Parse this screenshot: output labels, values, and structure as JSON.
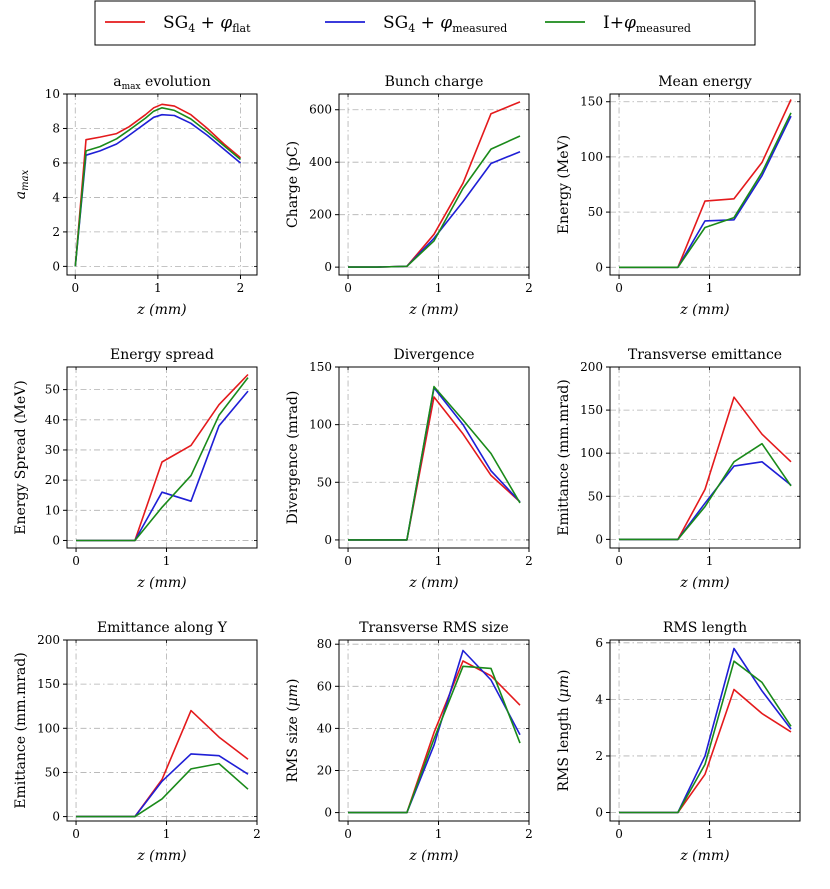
{
  "legend": [
    {
      "label": "SG",
      "sub": "4",
      "mid": " + ",
      "phi": "φ",
      "phi_sub": "flat",
      "color": "#e41a1c"
    },
    {
      "label": "SG",
      "sub": "4",
      "mid": " + ",
      "phi": "φ",
      "phi_sub": "measured",
      "color": "#1f1fd6"
    },
    {
      "label": "I+",
      "sub": "",
      "mid": "",
      "phi": "φ",
      "phi_sub": "measured",
      "color": "#1a8a1a"
    }
  ],
  "chart_data": [
    {
      "type": "line",
      "title": "a_max evolution",
      "title_main": "a",
      "title_sub": "max",
      "title_rest": " evolution",
      "xlabel": "z (mm)",
      "ylabel": "a_max",
      "ylabel_main": "a",
      "ylabel_sub": "max",
      "xlim": [
        -0.1,
        2.2
      ],
      "ylim": [
        -0.5,
        10
      ],
      "xticks": [
        0,
        1,
        2
      ],
      "yticks": [
        0,
        2,
        4,
        6,
        8,
        10
      ],
      "x": [
        0,
        0.13,
        0.3,
        0.5,
        0.65,
        0.85,
        0.95,
        1.05,
        1.2,
        1.4,
        1.6,
        1.8,
        2.0
      ],
      "series": [
        {
          "name": "SG4 + φflat",
          "values": [
            0,
            7.35,
            7.5,
            7.7,
            8.1,
            8.8,
            9.2,
            9.4,
            9.3,
            8.8,
            8.0,
            7.1,
            6.3
          ]
        },
        {
          "name": "SG4 + φmeasured",
          "values": [
            0,
            6.45,
            6.7,
            7.1,
            7.6,
            8.3,
            8.65,
            8.8,
            8.75,
            8.3,
            7.6,
            6.8,
            6.0
          ]
        },
        {
          "name": "I+φmeasured",
          "values": [
            0,
            6.7,
            6.95,
            7.4,
            7.9,
            8.6,
            9.0,
            9.2,
            9.05,
            8.55,
            7.8,
            7.0,
            6.2
          ]
        }
      ]
    },
    {
      "type": "line",
      "title": "Bunch charge",
      "xlabel": "z (mm)",
      "ylabel": "Charge (pC)",
      "xlim": [
        -0.1,
        2.0
      ],
      "ylim": [
        -30,
        660
      ],
      "xticks": [
        0,
        1,
        2
      ],
      "yticks": [
        0,
        200,
        400,
        600
      ],
      "x": [
        0,
        0.32,
        0.65,
        0.95,
        1.27,
        1.58,
        1.9
      ],
      "series": [
        {
          "name": "SG4 + φflat",
          "values": [
            0,
            0,
            3,
            125,
            320,
            585,
            630
          ]
        },
        {
          "name": "SG4 + φmeasured",
          "values": [
            0,
            0,
            3,
            110,
            250,
            395,
            440
          ]
        },
        {
          "name": "I+φmeasured",
          "values": [
            0,
            0,
            3,
            100,
            300,
            450,
            500
          ]
        }
      ]
    },
    {
      "type": "line",
      "title": "Mean energy",
      "xlabel": "z (mm)",
      "ylabel": "Energy (MeV)",
      "xlim": [
        -0.1,
        2.0
      ],
      "ylim": [
        -7,
        157
      ],
      "xticks": [
        0,
        1
      ],
      "yticks": [
        0,
        50,
        100,
        150
      ],
      "x": [
        0,
        0.32,
        0.65,
        0.95,
        1.27,
        1.58,
        1.9
      ],
      "series": [
        {
          "name": "SG4 + φflat",
          "values": [
            0,
            0,
            0,
            60,
            62,
            95,
            152
          ]
        },
        {
          "name": "SG4 + φmeasured",
          "values": [
            0,
            0,
            0,
            42,
            43,
            83,
            137
          ]
        },
        {
          "name": "I+φmeasured",
          "values": [
            0,
            0,
            0,
            36,
            45,
            86,
            140
          ]
        }
      ]
    },
    {
      "type": "line",
      "title": "Energy spread",
      "xlabel": "z (mm)",
      "ylabel": "Energy Spread (MeV)",
      "xlim": [
        -0.1,
        2.0
      ],
      "ylim": [
        -2.5,
        57.5
      ],
      "xticks": [
        0,
        1
      ],
      "yticks": [
        0,
        10,
        20,
        30,
        40,
        50
      ],
      "x": [
        0,
        0.32,
        0.65,
        0.95,
        1.27,
        1.58,
        1.9
      ],
      "series": [
        {
          "name": "SG4 + φflat",
          "values": [
            0,
            0,
            0,
            26,
            31.5,
            45,
            55
          ]
        },
        {
          "name": "SG4 + φmeasured",
          "values": [
            0,
            0,
            0,
            16,
            13,
            38,
            49.5
          ]
        },
        {
          "name": "I+φmeasured",
          "values": [
            0,
            0,
            0,
            11,
            21.5,
            41.5,
            54
          ]
        }
      ]
    },
    {
      "type": "line",
      "title": "Divergence",
      "xlabel": "z (mm)",
      "ylabel": "Divergence (mrad)",
      "xlim": [
        -0.1,
        2.0
      ],
      "ylim": [
        -7,
        150
      ],
      "xticks": [
        0,
        1,
        2
      ],
      "yticks": [
        0,
        50,
        100,
        150
      ],
      "x": [
        0,
        0.32,
        0.65,
        0.95,
        1.27,
        1.58,
        1.9
      ],
      "series": [
        {
          "name": "SG4 + φflat",
          "values": [
            0,
            0,
            0,
            124,
            92,
            56,
            33
          ]
        },
        {
          "name": "SG4 + φmeasured",
          "values": [
            0,
            0,
            0,
            132,
            100,
            60,
            33
          ]
        },
        {
          "name": "I+φmeasured",
          "values": [
            0,
            0,
            0,
            133,
            104,
            75,
            32
          ]
        }
      ]
    },
    {
      "type": "line",
      "title": "Transverse emittance",
      "xlabel": "z (mm)",
      "ylabel": "Emittance (mm.mrad)",
      "xlim": [
        -0.1,
        2.0
      ],
      "ylim": [
        -10,
        200
      ],
      "xticks": [
        0,
        1
      ],
      "yticks": [
        0,
        50,
        100,
        150,
        200
      ],
      "x": [
        0,
        0.32,
        0.65,
        0.95,
        1.27,
        1.58,
        1.9
      ],
      "series": [
        {
          "name": "SG4 + φflat",
          "values": [
            0,
            0,
            0,
            58,
            165,
            122,
            90
          ]
        },
        {
          "name": "SG4 + φmeasured",
          "values": [
            0,
            0,
            0,
            42,
            85,
            90,
            63
          ]
        },
        {
          "name": "I+φmeasured",
          "values": [
            0,
            0,
            0,
            38,
            90,
            111,
            62
          ]
        }
      ]
    },
    {
      "type": "line",
      "title": "Emittance along Y",
      "xlabel": "z (mm)",
      "ylabel": "Emittance (mm.mrad)",
      "xlim": [
        -0.1,
        2.0
      ],
      "ylim": [
        -5,
        200
      ],
      "xticks": [
        0,
        1,
        2
      ],
      "yticks": [
        0,
        50,
        100,
        150,
        200
      ],
      "x": [
        0,
        0.32,
        0.65,
        0.95,
        1.27,
        1.58,
        1.9
      ],
      "series": [
        {
          "name": "SG4 + φflat",
          "values": [
            0,
            0,
            0,
            42,
            120,
            90,
            65
          ]
        },
        {
          "name": "SG4 + φmeasured",
          "values": [
            0,
            0,
            0,
            40,
            71,
            69,
            48
          ]
        },
        {
          "name": "I+φmeasured",
          "values": [
            0,
            0,
            0,
            20,
            54,
            60,
            31
          ]
        }
      ]
    },
    {
      "type": "line",
      "title": "Transverse RMS size",
      "xlabel": "z (mm)",
      "ylabel": "RMS size (μm)",
      "ylabel_main": "RMS size (",
      "ylabel_unit": "μm",
      "ylabel_end": ")",
      "xlim": [
        -0.1,
        2.0
      ],
      "ylim": [
        -4,
        82
      ],
      "xticks": [
        0,
        1,
        2
      ],
      "yticks": [
        0,
        20,
        40,
        60,
        80
      ],
      "x": [
        0,
        0.32,
        0.65,
        0.95,
        1.27,
        1.58,
        1.9
      ],
      "series": [
        {
          "name": "SG4 + φflat",
          "values": [
            0,
            0,
            0,
            38,
            72,
            65,
            51
          ]
        },
        {
          "name": "SG4 + φmeasured",
          "values": [
            0,
            0,
            0,
            32,
            77,
            63,
            37
          ]
        },
        {
          "name": "I+φmeasured",
          "values": [
            0,
            0,
            0,
            35,
            69.5,
            68.5,
            33
          ]
        }
      ]
    },
    {
      "type": "line",
      "title": "RMS length",
      "xlabel": "z (mm)",
      "ylabel": "RMS length (μm)",
      "ylabel_main": "RMS length (",
      "ylabel_unit": "μm",
      "ylabel_end": ")",
      "xlim": [
        -0.1,
        2.0
      ],
      "ylim": [
        -0.3,
        6.1
      ],
      "xticks": [
        0,
        1
      ],
      "yticks": [
        0,
        2,
        4,
        6
      ],
      "x": [
        0,
        0.32,
        0.65,
        0.95,
        1.27,
        1.58,
        1.9
      ],
      "series": [
        {
          "name": "SG4 + φflat",
          "values": [
            0,
            0,
            0,
            1.35,
            4.35,
            3.5,
            2.85
          ]
        },
        {
          "name": "SG4 + φmeasured",
          "values": [
            0,
            0,
            0,
            2.0,
            5.8,
            4.3,
            2.95
          ]
        },
        {
          "name": "I+φmeasured",
          "values": [
            0,
            0,
            0,
            1.7,
            5.35,
            4.6,
            3.05
          ]
        }
      ]
    }
  ]
}
